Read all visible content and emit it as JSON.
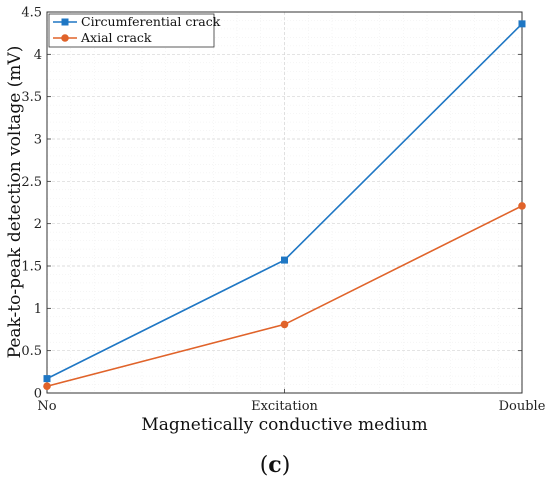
{
  "chart_data": {
    "type": "line",
    "categories": [
      "No",
      "Excitation",
      "Double"
    ],
    "series": [
      {
        "name": "Circumferential crack",
        "values": [
          0.17,
          1.57,
          4.36
        ],
        "color": "#1f77c4",
        "marker": "square"
      },
      {
        "name": "Axial crack",
        "values": [
          0.08,
          0.81,
          2.21
        ],
        "color": "#e0632a",
        "marker": "circle"
      }
    ],
    "xlabel": "Magnetically conductive medium",
    "ylabel": "Peak-to-peak detection voltage (mV)",
    "ylim": [
      0,
      4.5
    ],
    "yticks": [
      "0",
      "0.5",
      "1",
      "1.5",
      "2",
      "2.5",
      "3",
      "3.5",
      "4",
      "4.5"
    ],
    "grid": true,
    "legend": "top-left"
  },
  "caption": {
    "open": "(",
    "letter": "c",
    "close": ")"
  }
}
